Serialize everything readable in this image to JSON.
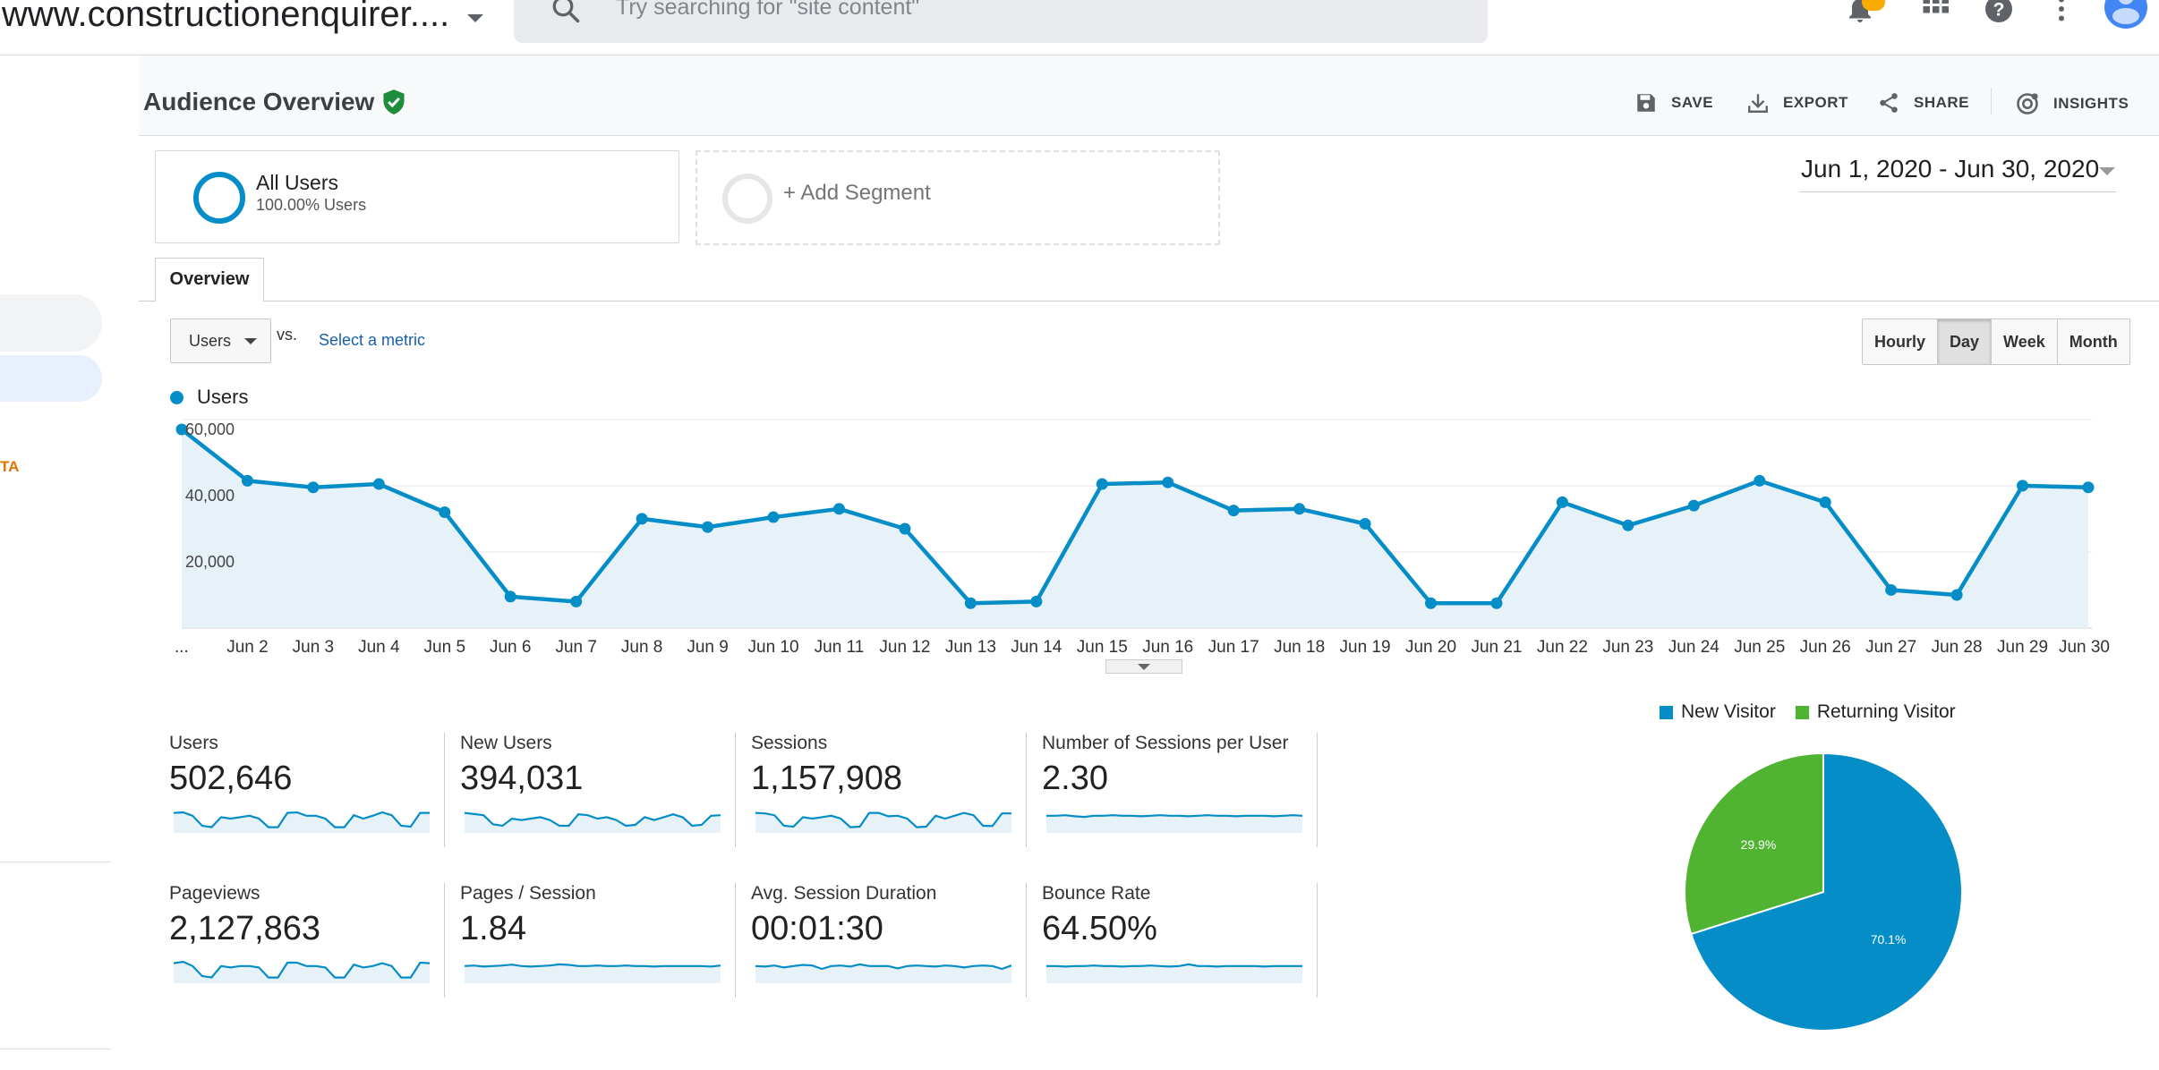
{
  "header": {
    "property": "www.constructionenquirer....",
    "search_placeholder": "Try searching for \"site content\""
  },
  "nav": {
    "label_fragment": "TA"
  },
  "report": {
    "title": "Audience Overview",
    "actions": {
      "save": "SAVE",
      "export": "EXPORT",
      "share": "SHARE",
      "insights": "INSIGHTS"
    },
    "segment": {
      "name": "All Users",
      "sub": "100.00% Users"
    },
    "add_segment": "+ Add Segment",
    "date_range": "Jun 1, 2020 - Jun 30, 2020",
    "tab": "Overview",
    "metric_select": "Users",
    "vs": "vs.",
    "select_metric": "Select a metric",
    "granularity": [
      "Hourly",
      "Day",
      "Week",
      "Month"
    ],
    "granularity_selected": "Day"
  },
  "colors": {
    "accent": "#058dc7",
    "fill": "#e6f1f8",
    "returning": "#50b432"
  },
  "chart_data": [
    {
      "type": "line",
      "series": [
        {
          "name": "Users",
          "values": [
            60000,
            44500,
            42500,
            43500,
            35000,
            9500,
            8000,
            33000,
            30500,
            33500,
            36000,
            30000,
            7500,
            8000,
            43500,
            44000,
            35500,
            36000,
            31500,
            7500,
            7500,
            38000,
            31000,
            37000,
            44500,
            38000,
            11500,
            10000,
            43000,
            42500
          ]
        }
      ],
      "x_tick_labels": [
        "...",
        "Jun 2",
        "Jun 3",
        "Jun 4",
        "Jun 5",
        "Jun 6",
        "Jun 7",
        "Jun 8",
        "Jun 9",
        "Jun 10",
        "Jun 11",
        "Jun 12",
        "Jun 13",
        "Jun 14",
        "Jun 15",
        "Jun 16",
        "Jun 17",
        "Jun 18",
        "Jun 19",
        "Jun 20",
        "Jun 21",
        "Jun 22",
        "Jun 23",
        "Jun 24",
        "Jun 25",
        "Jun 26",
        "Jun 27",
        "Jun 28",
        "Jun 29",
        "Jun 30"
      ],
      "y_tick_labels": [
        "60,000",
        "40,000",
        "20,000"
      ],
      "y_ticks": [
        60000,
        40000,
        20000
      ],
      "ylim": [
        0,
        60000
      ],
      "grid": true
    },
    {
      "type": "pie",
      "categories": [
        "New Visitor",
        "Returning Visitor"
      ],
      "values": [
        70.1,
        29.9
      ],
      "value_labels": [
        "70.1%",
        "29.9%"
      ],
      "colors": [
        "#058dc7",
        "#50b432"
      ],
      "legend": "top"
    }
  ],
  "scorecards": [
    {
      "label": "Users",
      "value": "502,646",
      "spark": [
        0.7,
        0.72,
        0.6,
        0.25,
        0.2,
        0.55,
        0.5,
        0.55,
        0.6,
        0.5,
        0.2,
        0.2,
        0.7,
        0.72,
        0.6,
        0.6,
        0.5,
        0.2,
        0.2,
        0.62,
        0.5,
        0.6,
        0.72,
        0.62,
        0.25,
        0.22,
        0.7,
        0.7
      ]
    },
    {
      "label": "New Users",
      "value": "394,031",
      "spark": [
        0.7,
        0.66,
        0.62,
        0.3,
        0.25,
        0.5,
        0.45,
        0.5,
        0.55,
        0.45,
        0.25,
        0.25,
        0.65,
        0.62,
        0.5,
        0.55,
        0.45,
        0.25,
        0.28,
        0.55,
        0.45,
        0.55,
        0.65,
        0.55,
        0.25,
        0.28,
        0.6,
        0.62
      ]
    },
    {
      "label": "Sessions",
      "value": "1,157,908",
      "spark": [
        0.7,
        0.68,
        0.62,
        0.25,
        0.22,
        0.55,
        0.5,
        0.55,
        0.6,
        0.5,
        0.2,
        0.22,
        0.7,
        0.7,
        0.58,
        0.6,
        0.5,
        0.2,
        0.22,
        0.6,
        0.5,
        0.6,
        0.7,
        0.62,
        0.25,
        0.24,
        0.68,
        0.68
      ]
    },
    {
      "label": "Number of Sessions per User",
      "value": "2.30",
      "spark": [
        0.6,
        0.6,
        0.62,
        0.58,
        0.56,
        0.6,
        0.6,
        0.62,
        0.6,
        0.6,
        0.58,
        0.6,
        0.62,
        0.6,
        0.6,
        0.58,
        0.6,
        0.62,
        0.6,
        0.6,
        0.58,
        0.6,
        0.6,
        0.6,
        0.58,
        0.6,
        0.62,
        0.6
      ]
    },
    {
      "label": "Pageviews",
      "value": "2,127,863",
      "spark": [
        0.7,
        0.75,
        0.6,
        0.25,
        0.2,
        0.6,
        0.55,
        0.6,
        0.6,
        0.55,
        0.2,
        0.2,
        0.72,
        0.72,
        0.6,
        0.6,
        0.55,
        0.2,
        0.2,
        0.65,
        0.55,
        0.6,
        0.7,
        0.6,
        0.2,
        0.2,
        0.72,
        0.7
      ]
    },
    {
      "label": "Pages / Session",
      "value": "1.84",
      "spark": [
        0.6,
        0.62,
        0.58,
        0.6,
        0.62,
        0.65,
        0.6,
        0.58,
        0.6,
        0.62,
        0.66,
        0.64,
        0.6,
        0.6,
        0.62,
        0.6,
        0.6,
        0.62,
        0.6,
        0.6,
        0.58,
        0.6,
        0.6,
        0.6,
        0.6,
        0.6,
        0.58,
        0.62
      ]
    },
    {
      "label": "Avg. Session Duration",
      "value": "00:01:30",
      "spark": [
        0.6,
        0.58,
        0.62,
        0.55,
        0.6,
        0.64,
        0.62,
        0.5,
        0.6,
        0.62,
        0.58,
        0.66,
        0.6,
        0.6,
        0.6,
        0.52,
        0.6,
        0.62,
        0.6,
        0.58,
        0.62,
        0.6,
        0.55,
        0.6,
        0.62,
        0.6,
        0.5,
        0.62
      ]
    },
    {
      "label": "Bounce Rate",
      "value": "64.50%",
      "spark": [
        0.6,
        0.6,
        0.58,
        0.6,
        0.6,
        0.62,
        0.6,
        0.6,
        0.58,
        0.6,
        0.6,
        0.62,
        0.6,
        0.58,
        0.6,
        0.66,
        0.6,
        0.6,
        0.58,
        0.6,
        0.6,
        0.6,
        0.6,
        0.58,
        0.6,
        0.6,
        0.6,
        0.6
      ]
    }
  ]
}
